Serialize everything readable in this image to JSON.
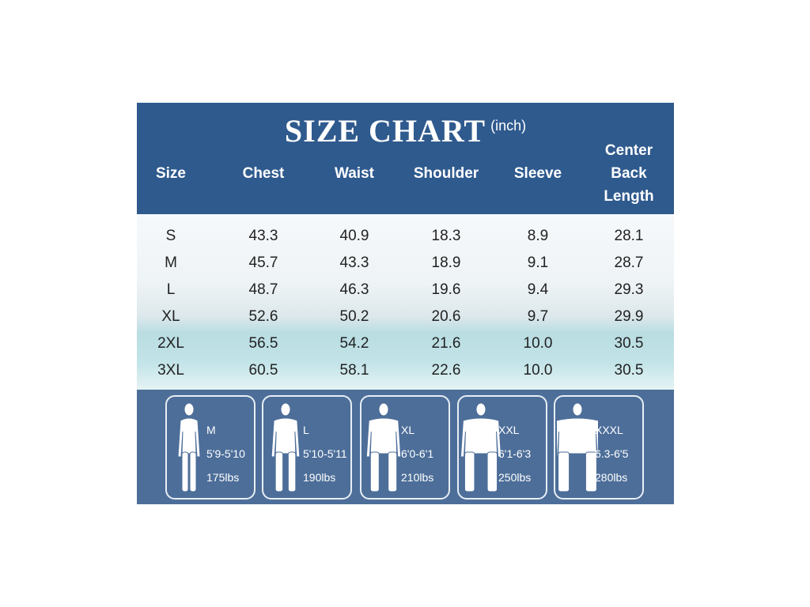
{
  "header": {
    "title": "SIZE CHART",
    "unit": "(inch)",
    "columns": [
      "Size",
      "Chest",
      "Waist",
      "Shoulder",
      "Sleeve",
      "Center Back Length"
    ]
  },
  "table": {
    "rows": [
      [
        "S",
        "43.3",
        "40.9",
        "18.3",
        "8.9",
        "28.1"
      ],
      [
        "M",
        "45.7",
        "43.3",
        "18.9",
        "9.1",
        "28.7"
      ],
      [
        "L",
        "48.7",
        "46.3",
        "19.6",
        "9.4",
        "29.3"
      ],
      [
        "XL",
        "52.6",
        "50.2",
        "20.6",
        "9.7",
        "29.9"
      ],
      [
        "2XL",
        "56.5",
        "54.2",
        "21.6",
        "10.0",
        "30.5"
      ],
      [
        "3XL",
        "60.5",
        "58.1",
        "22.6",
        "10.0",
        "30.5"
      ]
    ]
  },
  "models": [
    {
      "size": "M",
      "height": "5'9-5'10",
      "weight": "175lbs"
    },
    {
      "size": "L",
      "height": "5'10-5'11",
      "weight": "190lbs"
    },
    {
      "size": "XL",
      "height": "6'0-6'1",
      "weight": "210lbs"
    },
    {
      "size": "XXL",
      "height": "6'1-6'3",
      "weight": "250lbs"
    },
    {
      "size": "XXXL",
      "height": "6.3-6'5",
      "weight": "280lbs"
    }
  ]
}
